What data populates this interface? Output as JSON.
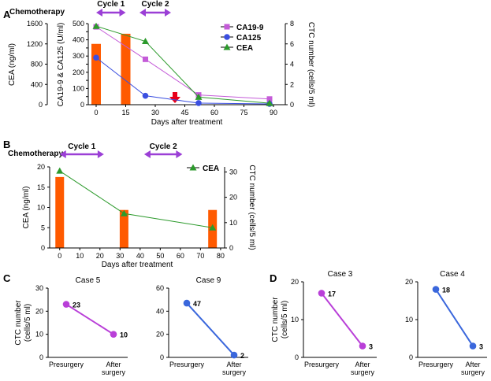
{
  "colors": {
    "bar": "#ff5a00",
    "ca199": "#c45bd8",
    "ca125": "#3b4fe0",
    "cea": "#2c9a2c",
    "cycle_arrow": "#9b3fd6",
    "event_arrow": "#e8001a",
    "case_purple": "#b93fd8",
    "case_blue": "#3a67dc"
  },
  "chart_data": [
    {
      "id": "A",
      "type": "bar+line",
      "panel_letter": "A",
      "treatment_label": "Chemotherapy",
      "cycles": [
        {
          "label": "Cycle 1",
          "start": 0,
          "end": 15
        },
        {
          "label": "Cycle 2",
          "start": 22,
          "end": 38
        }
      ],
      "event_arrow_x": 40,
      "xlabel": "Days after treatment",
      "xlim": [
        -4,
        96
      ],
      "xticks": [
        0,
        15,
        30,
        45,
        60,
        75,
        90
      ],
      "y_cea": {
        "label": "CEA (ng/ml)",
        "range": [
          0,
          1600
        ],
        "ticks": [
          0,
          400,
          800,
          1200,
          1600
        ]
      },
      "y_ca": {
        "label": "CA19-9 & CA125 (U/ml)",
        "range": [
          0,
          500
        ],
        "ticks": [
          0,
          50,
          100,
          150,
          200,
          250,
          300,
          350,
          400,
          450,
          500
        ]
      },
      "y_ctc": {
        "label": "CTC number (cells/5 ml)",
        "range": [
          0,
          8
        ],
        "ticks": [
          0,
          2,
          4,
          6,
          8
        ]
      },
      "bars": [
        {
          "x": 0,
          "ctc": 6
        },
        {
          "x": 15,
          "ctc": 7
        }
      ],
      "series": [
        {
          "name": "CA19-9",
          "axis": "ca",
          "marker": "square",
          "color_key": "ca199",
          "points": [
            [
              0,
              480
            ],
            [
              25,
              280
            ],
            [
              52,
              60
            ],
            [
              88,
              35
            ]
          ]
        },
        {
          "name": "CA125",
          "axis": "ca",
          "marker": "circle",
          "color_key": "ca125",
          "points": [
            [
              0,
              290
            ],
            [
              25,
              55
            ],
            [
              52,
              10
            ],
            [
              88,
              5
            ]
          ]
        },
        {
          "name": "CEA",
          "axis": "cea",
          "marker": "triangle",
          "color_key": "cea",
          "points": [
            [
              0,
              1550
            ],
            [
              25,
              1250
            ],
            [
              52,
              150
            ],
            [
              88,
              30
            ]
          ]
        }
      ],
      "legend": [
        "CA19-9",
        "CA125",
        "CEA"
      ]
    },
    {
      "id": "B",
      "type": "bar+line",
      "panel_letter": "B",
      "treatment_label": "Chemotherapy",
      "cycles": [
        {
          "label": "Cycle 1",
          "start": 0,
          "end": 22
        },
        {
          "label": "Cycle 2",
          "start": 42,
          "end": 61
        }
      ],
      "xlabel": "Days after treatment",
      "xlim": [
        -5,
        82
      ],
      "xticks": [
        0,
        10,
        20,
        30,
        40,
        50,
        60,
        70,
        80
      ],
      "y_cea": {
        "label": "CEA (ng/ml)",
        "range": [
          0,
          20
        ],
        "ticks": [
          0,
          5,
          10,
          15,
          20
        ]
      },
      "y_ctc": {
        "label": "CTC number (cells/5 ml)",
        "range": [
          0,
          32
        ],
        "ticks": [
          0,
          10,
          20,
          30
        ]
      },
      "bars": [
        {
          "x": 0,
          "ctc": 28
        },
        {
          "x": 32,
          "ctc": 15
        },
        {
          "x": 76,
          "ctc": 15
        }
      ],
      "series": [
        {
          "name": "CEA",
          "axis": "cea",
          "marker": "triangle",
          "color_key": "cea",
          "points": [
            [
              0,
              19
            ],
            [
              32,
              8.5
            ],
            [
              76,
              5
            ]
          ]
        }
      ],
      "legend": [
        "CEA"
      ]
    },
    {
      "id": "C5",
      "type": "line",
      "panel_letter": "C",
      "title": "Case 5",
      "ylabel": "CTC number (cells/5 ml)",
      "ylim": [
        0,
        30
      ],
      "yticks": [
        0,
        10,
        20,
        30
      ],
      "categories": [
        "Presurgery",
        "After surgery"
      ],
      "values": [
        23,
        10
      ],
      "color_key": "case_purple"
    },
    {
      "id": "C9",
      "type": "line",
      "title": "Case 9",
      "ylim": [
        0,
        60
      ],
      "yticks": [
        0,
        20,
        40,
        60
      ],
      "categories": [
        "Presurgery",
        "After surgery"
      ],
      "values": [
        47,
        2
      ],
      "color_key": "case_blue"
    },
    {
      "id": "D3",
      "type": "line",
      "panel_letter": "D",
      "title": "Case 3",
      "ylabel": "CTC number (cells/5 ml)",
      "ylim": [
        0,
        20
      ],
      "yticks": [
        0,
        10,
        20
      ],
      "categories": [
        "Presurgery",
        "After surgery"
      ],
      "values": [
        17,
        3
      ],
      "color_key": "case_purple"
    },
    {
      "id": "D4",
      "type": "line",
      "title": "Case 4",
      "ylim": [
        0,
        20
      ],
      "yticks": [
        0,
        10,
        20
      ],
      "categories": [
        "Presurgery",
        "After surgery"
      ],
      "values": [
        18,
        3
      ],
      "color_key": "case_blue"
    }
  ]
}
